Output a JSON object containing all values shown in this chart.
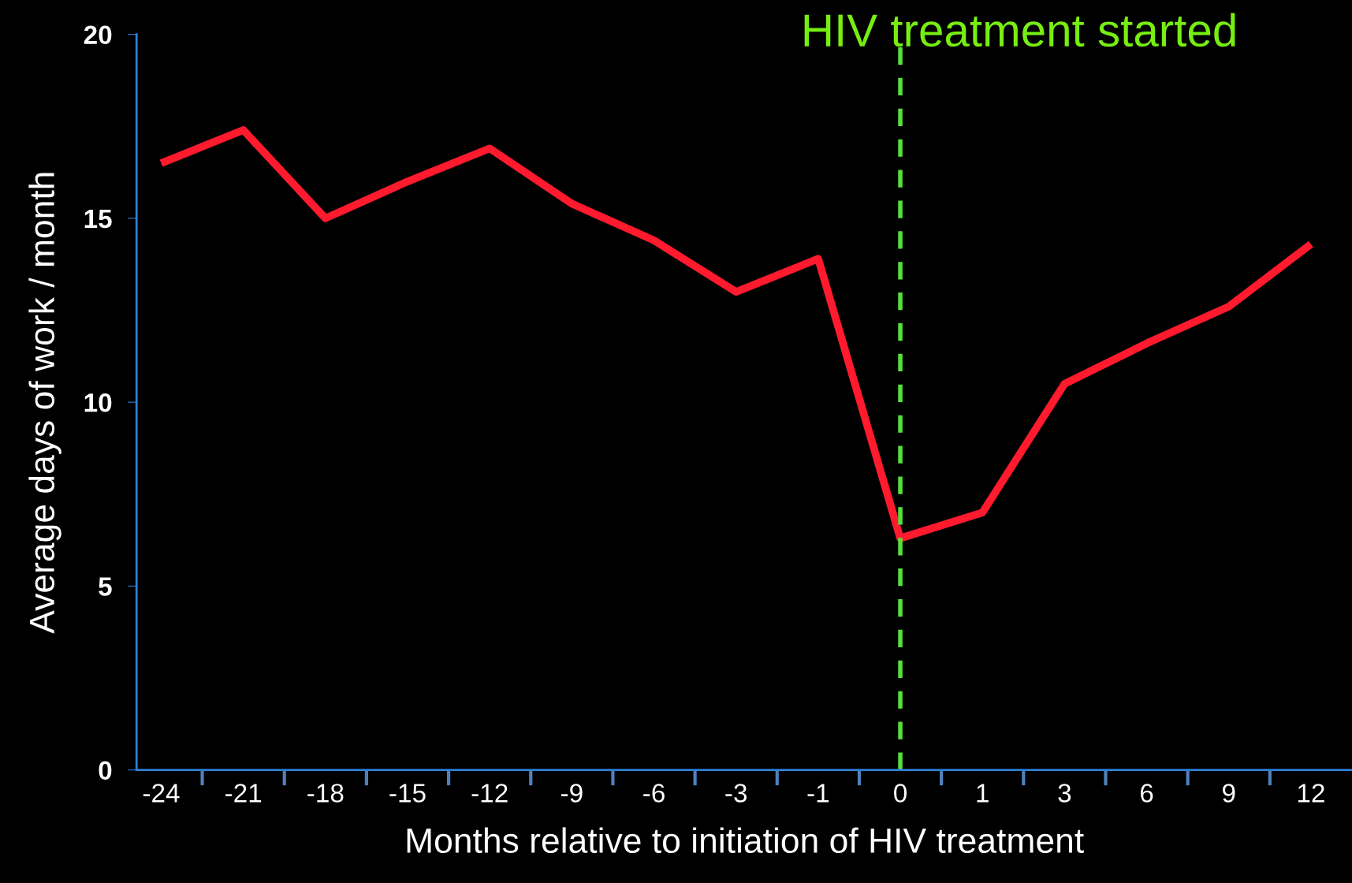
{
  "chart_data": {
    "type": "line",
    "xlabel": "Months relative to initiation of HIV treatment",
    "ylabel": "Average days of work / month",
    "categories": [
      "-24",
      "-21",
      "-18",
      "-15",
      "-12",
      "-9",
      "-6",
      "-3",
      "-1",
      "0",
      "1",
      "3",
      "6",
      "9",
      "12"
    ],
    "series": [
      {
        "color": "#ff1a2e",
        "values": [
          16.5,
          17.4,
          15.0,
          16.0,
          16.9,
          15.4,
          14.4,
          13.0,
          13.9,
          6.3,
          7.0,
          10.5,
          11.6,
          12.6,
          14.3
        ]
      }
    ],
    "ylim": [
      0,
      20
    ],
    "yticks": [
      0,
      5,
      10,
      15,
      20
    ],
    "grid": false,
    "legend": false,
    "marker": "none",
    "line_style": "solid",
    "ref_lines": [
      {
        "axis": "x",
        "value": "0",
        "label": "HIV treatment started",
        "color": "#55e03a",
        "line_style": "dashed"
      }
    ]
  }
}
